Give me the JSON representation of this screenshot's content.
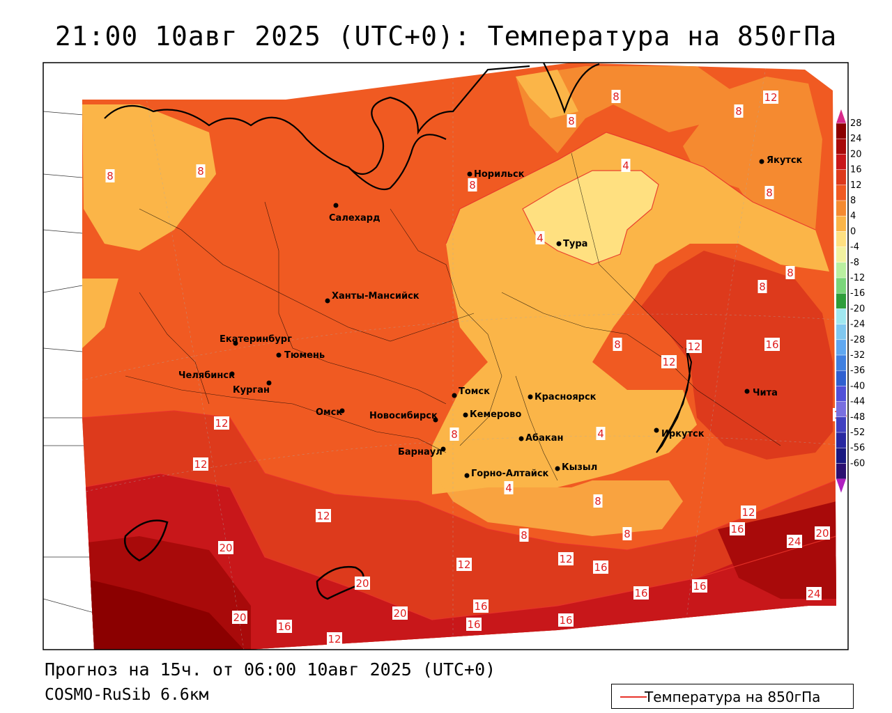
{
  "title": "21:00 10авг 2025 (UTC+0): Температура на 850гПа",
  "footer": {
    "forecast": "Прогноз на 15ч. от 06:00 10авг 2025 (UTC+0)",
    "model": "COSMO-RuSib 6.6км"
  },
  "legend": {
    "label": "Температура на 850гПа"
  },
  "colorbar": {
    "ticks": [
      "28",
      "24",
      "20",
      "16",
      "12",
      "8",
      "4",
      "0",
      "-4",
      "-8",
      "-12",
      "-16",
      "-20",
      "-24",
      "-28",
      "-32",
      "-36",
      "-40",
      "-44",
      "-48",
      "-52",
      "-56",
      "-60"
    ],
    "colors": {
      "t28": "#8b0000",
      "t24": "#a80a0a",
      "t20": "#c8171a",
      "t16": "#dd3a1c",
      "t12": "#f05a22",
      "t8": "#f58a30",
      "t4": "#fbb548",
      "t0": "#ffe080",
      "tm4": "#f2f2a0",
      "tm8": "#b9f0a0",
      "tm12": "#7ad67a",
      "tm16": "#2e9e3a",
      "tm20": "#a0e8f0",
      "tm24": "#80c8f0",
      "tm28": "#60a8f0",
      "tm32": "#4080e0",
      "tm36": "#3060d0",
      "tm40": "#5050d8",
      "tm44": "#7a70e0",
      "tm48": "#4040c0",
      "tm52": "#2828a0",
      "tm56": "#181880",
      "tm60": "#2a1070",
      "top_arrow": "#d82a8a",
      "bottom_arrow": "#b020c0"
    }
  },
  "cities": [
    {
      "name": "Норильск"
    },
    {
      "name": "Салехард"
    },
    {
      "name": "Тура"
    },
    {
      "name": "Якутск"
    },
    {
      "name": "Ханты-Мансийск"
    },
    {
      "name": "Екатеринбург"
    },
    {
      "name": "Тюмень"
    },
    {
      "name": "Челябинск"
    },
    {
      "name": "Курган"
    },
    {
      "name": "Омск"
    },
    {
      "name": "Новосибирск"
    },
    {
      "name": "Томск"
    },
    {
      "name": "Кемерово"
    },
    {
      "name": "Красноярск"
    },
    {
      "name": "Барнаул"
    },
    {
      "name": "Абакан"
    },
    {
      "name": "Горно-Алтайск"
    },
    {
      "name": "Кызыл"
    },
    {
      "name": "Иркутск"
    },
    {
      "name": "Чита"
    }
  ],
  "isotherm_labels": [
    "8",
    "8",
    "8",
    "12",
    "8",
    "4",
    "8",
    "8",
    "8",
    "8",
    "4",
    "8",
    "12",
    "8",
    "12",
    "16",
    "12",
    "16",
    "12",
    "8",
    "12",
    "20",
    "8",
    "12",
    "16",
    "24",
    "20",
    "8",
    "12",
    "12",
    "16",
    "20",
    "16",
    "16",
    "24",
    "20",
    "16",
    "20",
    "16",
    "16",
    "16",
    "12",
    "4",
    "4",
    "8"
  ]
}
